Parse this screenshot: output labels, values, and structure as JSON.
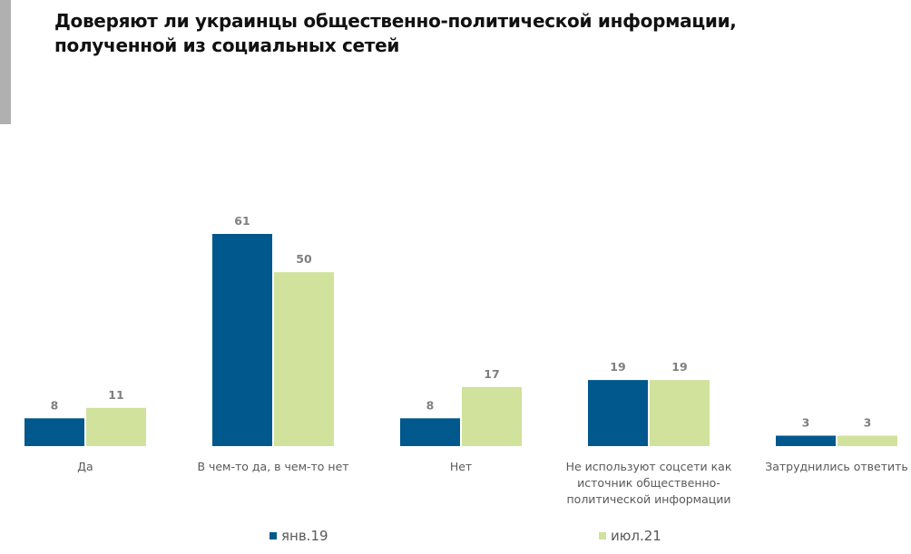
{
  "chart_data": {
    "type": "bar",
    "title": "Доверяют ли украинцы общественно-политической информации, полученной из социальных сетей",
    "title_lines": [
      "Доверяют ли украинцы общественно-политической информации,",
      "полученной из социальных сетей"
    ],
    "categories": [
      [
        "Да"
      ],
      [
        "В чем-то да, в чем-то нет"
      ],
      [
        "Нет"
      ],
      [
        "Не используют соцсети как",
        "источник общественно-",
        "политической информации"
      ],
      [
        "Затруднились ответить"
      ]
    ],
    "series": [
      {
        "name": "янв.19",
        "color": "#00588c",
        "values": [
          8,
          61,
          8,
          19,
          3
        ]
      },
      {
        "name": "июл.21",
        "color": "#d0e29c",
        "values": [
          11,
          50,
          17,
          19,
          3
        ]
      }
    ],
    "data_labels": true,
    "grid": false,
    "legend": "bottom",
    "xlabel": "",
    "ylabel": ""
  }
}
